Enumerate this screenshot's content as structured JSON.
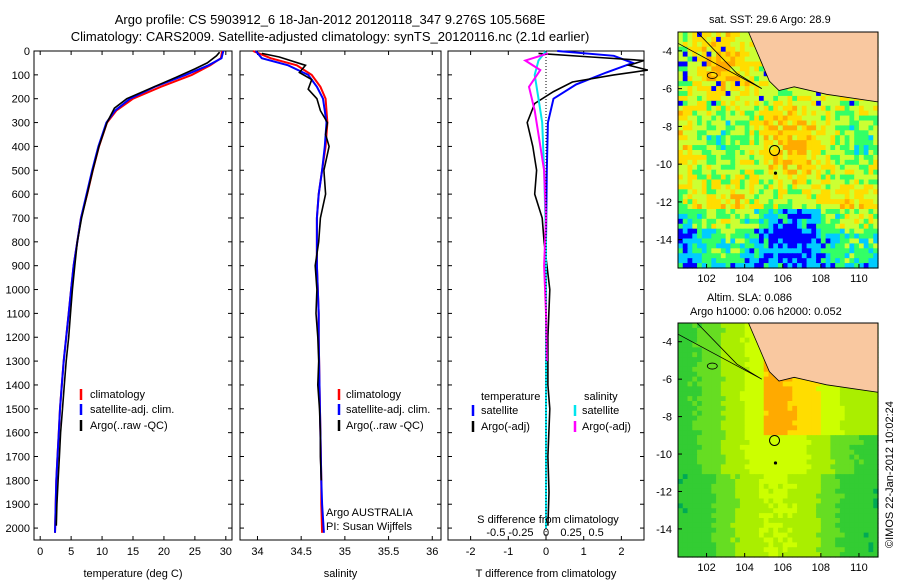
{
  "header": {
    "title_line1": "Argo profile: CS 5903912_6 18-Jan-2012 20120118_347 9.276S 105.568E",
    "title_line2": "Climatology: CARS2009. Satellite-adjusted climatology: synTS_20120116.nc (2.1d earlier)"
  },
  "stamp": "©IMOS 22-Jan-2012 10:02:24",
  "colors": {
    "climatology": "#ff0000",
    "satellite": "#0000ff",
    "argo": "#000000",
    "sat_diff_S": "#00e5ee",
    "argo_diff_S": "#ff00ff",
    "land": "#f9c8a0"
  },
  "chart_data": [
    {
      "id": "temperature",
      "type": "line",
      "xlabel": "temperature (deg C)",
      "ylabel": "",
      "xlim": [
        -1,
        31
      ],
      "ylim": [
        2050,
        0
      ],
      "xticks": [
        0,
        5,
        10,
        15,
        20,
        25,
        30
      ],
      "yticks": [
        0,
        100,
        200,
        300,
        400,
        500,
        600,
        700,
        800,
        900,
        1000,
        1100,
        1200,
        1300,
        1400,
        1500,
        1600,
        1700,
        1800,
        1900,
        2000
      ],
      "legend": {
        "placement": "lower-right",
        "entries": [
          "climatology",
          "satellite-adj. clim.",
          "Argo(..raw -QC)"
        ]
      },
      "series": [
        {
          "name": "climatology",
          "color": "#ff0000",
          "x": [
            29.4,
            29.2,
            27.5,
            24.5,
            19.5,
            15.0,
            12.3,
            10.8,
            9.5,
            8.5,
            7.6,
            6.6,
            6.0,
            5.4,
            5.0,
            4.6,
            4.2,
            3.8,
            3.5,
            3.2,
            3.0,
            2.8,
            2.6,
            2.4
          ],
          "y": [
            0,
            30,
            60,
            100,
            150,
            200,
            250,
            300,
            400,
            500,
            600,
            700,
            800,
            900,
            1000,
            1100,
            1200,
            1300,
            1400,
            1500,
            1600,
            1700,
            1800,
            2020
          ]
        },
        {
          "name": "satellite-adj. clim.",
          "color": "#0000ff",
          "x": [
            29.6,
            29.3,
            27.2,
            23.5,
            18.5,
            14.5,
            12.1,
            10.7,
            9.4,
            8.4,
            7.5,
            6.6,
            6.0,
            5.4,
            5.0,
            4.6,
            4.2,
            3.8,
            3.5,
            3.2,
            3.0,
            2.8,
            2.6,
            2.4
          ],
          "y": [
            0,
            30,
            60,
            100,
            150,
            200,
            250,
            300,
            400,
            500,
            600,
            700,
            800,
            900,
            1000,
            1100,
            1200,
            1300,
            1400,
            1500,
            1600,
            1700,
            1800,
            2020
          ]
        },
        {
          "name": "Argo(..raw -QC)",
          "color": "#000000",
          "x": [
            29.0,
            28.5,
            27.0,
            25.0,
            22.0,
            17.5,
            14.0,
            12.0,
            10.8,
            9.5,
            8.5,
            7.6,
            6.7,
            6.0,
            5.6,
            5.2,
            4.9,
            4.6,
            4.2,
            3.9,
            3.6,
            3.3,
            3.1,
            2.9,
            2.7,
            2.6
          ],
          "y": [
            5,
            20,
            50,
            75,
            110,
            160,
            200,
            240,
            300,
            400,
            500,
            600,
            700,
            800,
            900,
            1000,
            1100,
            1200,
            1300,
            1400,
            1500,
            1600,
            1700,
            1800,
            1900,
            1990
          ]
        }
      ]
    },
    {
      "id": "salinity",
      "type": "line",
      "xlabel": "salinity",
      "ylabel": "",
      "xlim": [
        33.8,
        36.1
      ],
      "ylim": [
        2050,
        0
      ],
      "xticks": [
        34,
        34.5,
        35,
        35.5,
        36
      ],
      "xtick_labels": [
        "34",
        "34.5",
        "35",
        "35.5",
        "36"
      ],
      "legend": {
        "placement": "lower-right",
        "entries": [
          "climatology",
          "satellite-adj. clim.",
          "Argo(..raw -QC)"
        ]
      },
      "annotation_lines": [
        "Argo AUSTRALIA",
        "PI: Susan Wijffels"
      ],
      "series": [
        {
          "name": "climatology",
          "color": "#ff0000",
          "x": [
            33.95,
            34.15,
            34.45,
            34.62,
            34.72,
            34.78,
            34.8,
            34.78,
            34.74,
            34.7,
            34.68,
            34.68,
            34.68,
            34.69,
            34.7,
            34.7,
            34.71,
            34.72,
            34.73,
            34.73,
            34.74
          ],
          "y": [
            0,
            30,
            60,
            100,
            150,
            200,
            300,
            400,
            500,
            600,
            700,
            800,
            900,
            1000,
            1100,
            1200,
            1400,
            1600,
            1800,
            1900,
            2020
          ]
        },
        {
          "name": "satellite-adj. clim.",
          "color": "#0000ff",
          "x": [
            33.98,
            34.05,
            34.35,
            34.58,
            34.68,
            34.75,
            34.79,
            34.77,
            34.74,
            34.7,
            34.68,
            34.68,
            34.68,
            34.69,
            34.7,
            34.7,
            34.71,
            34.72,
            34.73,
            34.74,
            34.76
          ],
          "y": [
            0,
            30,
            60,
            100,
            150,
            200,
            300,
            400,
            500,
            600,
            700,
            800,
            900,
            1000,
            1100,
            1200,
            1400,
            1600,
            1800,
            1900,
            2020
          ]
        },
        {
          "name": "Argo(..raw -QC)",
          "color": "#000000",
          "x": [
            34.05,
            34.25,
            34.55,
            34.48,
            34.62,
            34.58,
            34.68,
            34.72,
            34.8,
            34.78,
            34.82,
            34.76,
            34.78,
            34.72,
            34.7,
            34.66,
            34.68,
            34.67,
            34.69,
            34.7,
            34.69,
            34.71,
            34.72,
            34.72,
            34.73
          ],
          "y": [
            10,
            25,
            60,
            90,
            120,
            160,
            200,
            250,
            300,
            350,
            400,
            500,
            600,
            700,
            800,
            900,
            1000,
            1100,
            1200,
            1300,
            1400,
            1500,
            1600,
            1700,
            1800
          ]
        }
      ]
    },
    {
      "id": "difference",
      "type": "line",
      "xlabel": "T difference from climatology",
      "top_axis_label": "S difference from climatology",
      "ylabel": "",
      "xlim": [
        -2.6,
        2.6
      ],
      "ylim": [
        2050,
        0
      ],
      "xticks": [
        -2,
        -1,
        0,
        1,
        2
      ],
      "top_ticks": [
        -0.5,
        -0.25,
        0,
        0.25,
        0.5
      ],
      "top_tick_labels": [
        "-0.5",
        "-0.25",
        "0",
        "0.25",
        "0.5"
      ],
      "legend": {
        "placement": "lower-center",
        "left_header": "temperature",
        "right_header": "salinity",
        "left_entries": [
          "satellite",
          "Argo(-adj)"
        ],
        "right_entries": [
          "satellite",
          "Argo(-adj)"
        ]
      },
      "series": [
        {
          "name": "satellite",
          "group": "temperature",
          "color": "#0000ff",
          "x": [
            0.3,
            1.8,
            2.3,
            1.6,
            0.8,
            0.2,
            0.05,
            0.02,
            0,
            0,
            0,
            0,
            0
          ],
          "y": [
            0,
            20,
            50,
            90,
            140,
            200,
            300,
            500,
            800,
            1200,
            1600,
            1900,
            2000
          ]
        },
        {
          "name": "Argo(-adj)",
          "group": "temperature",
          "color": "#000000",
          "x": [
            -0.2,
            1.2,
            2.6,
            2.2,
            2.7,
            1.8,
            0.7,
            0.2,
            -0.3,
            -0.5,
            -0.35,
            -0.25,
            -0.3,
            -0.1,
            -0.05,
            0.1,
            0.05,
            0.05,
            0.1,
            0.05,
            0.08,
            0.05
          ],
          "y": [
            10,
            25,
            40,
            60,
            80,
            100,
            130,
            170,
            220,
            300,
            400,
            500,
            600,
            700,
            800,
            1000,
            1200,
            1400,
            1500,
            1700,
            1850,
            1990
          ]
        },
        {
          "name": "satellite",
          "group": "salinity",
          "color": "#00e5ee",
          "x": [
            0,
            -0.2,
            -0.3,
            -0.2,
            -0.1,
            -0.05,
            0,
            0,
            0,
            0,
            0
          ],
          "y": [
            0,
            40,
            100,
            200,
            300,
            500,
            800,
            1200,
            1600,
            1900,
            2000
          ]
        },
        {
          "name": "Argo(-adj)",
          "group": "salinity",
          "color": "#ff00ff",
          "x": [
            0.05,
            -0.55,
            -0.15,
            -0.45,
            -0.3,
            -0.2,
            -0.05,
            0,
            -0.05,
            0,
            0.02
          ],
          "y": [
            10,
            40,
            80,
            150,
            250,
            350,
            500,
            700,
            900,
            1100,
            1300
          ]
        }
      ]
    },
    {
      "id": "sst_map",
      "type": "heatmap",
      "title": "sat. SST: 29.6 Argo: 28.9",
      "xticks": [
        102,
        104,
        106,
        108,
        110
      ],
      "yticks": [
        -4,
        -6,
        -8,
        -10,
        -12,
        -14
      ],
      "xlim": [
        100.5,
        111
      ],
      "ylim": [
        -15.5,
        -3
      ],
      "argo_position": {
        "lon": 105.568,
        "lat": -9.276
      },
      "colormap": [
        "#0000ff",
        "#00ccff",
        "#33ff66",
        "#ccff33",
        "#ffdd00",
        "#ffaa00",
        "#ff5500"
      ]
    },
    {
      "id": "sla_map",
      "type": "heatmap",
      "title_line1": "Altim. SLA: 0.086",
      "title_line2": "Argo h1000: 0.06 h2000: 0.052",
      "xticks": [
        102,
        104,
        106,
        108,
        110
      ],
      "yticks": [
        -4,
        -6,
        -8,
        -10,
        -12,
        -14
      ],
      "xlim": [
        100.5,
        111
      ],
      "ylim": [
        -15.5,
        -3
      ],
      "argo_position": {
        "lon": 105.568,
        "lat": -9.276
      },
      "colormap": [
        "#00aa55",
        "#33cc33",
        "#66dd22",
        "#aaee00",
        "#ccff00",
        "#ffdd00",
        "#ffaa00"
      ]
    }
  ]
}
